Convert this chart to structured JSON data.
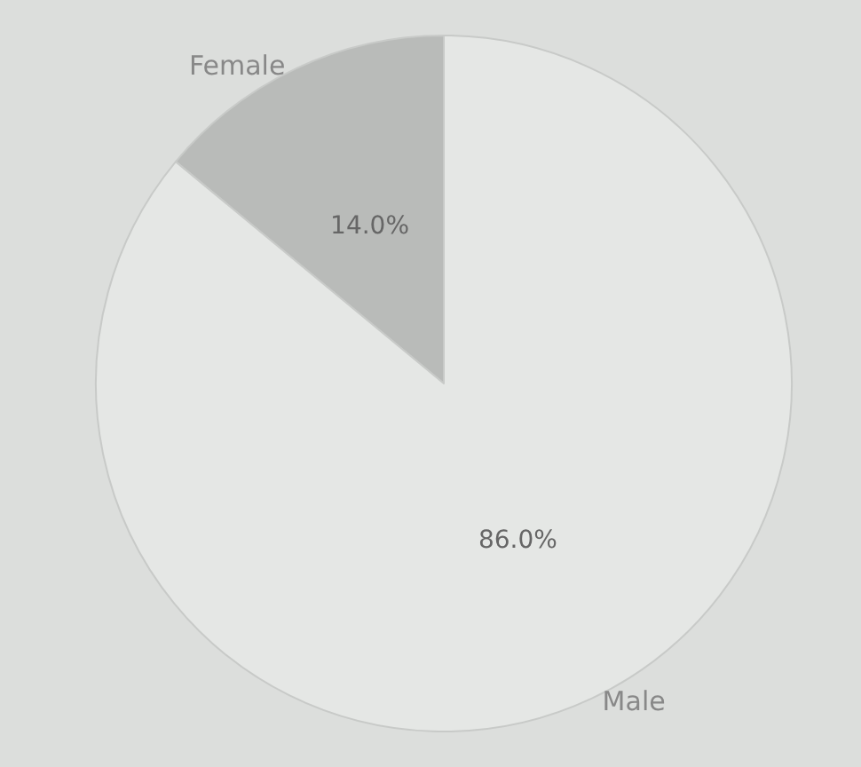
{
  "chart_data": {
    "type": "pie",
    "categories": [
      "Female",
      "Male"
    ],
    "values": [
      14.0,
      86.0
    ],
    "colors": [
      "#b9bbb9",
      "#e5e7e5"
    ],
    "value_labels": [
      "14.0%",
      "86.0%"
    ]
  }
}
